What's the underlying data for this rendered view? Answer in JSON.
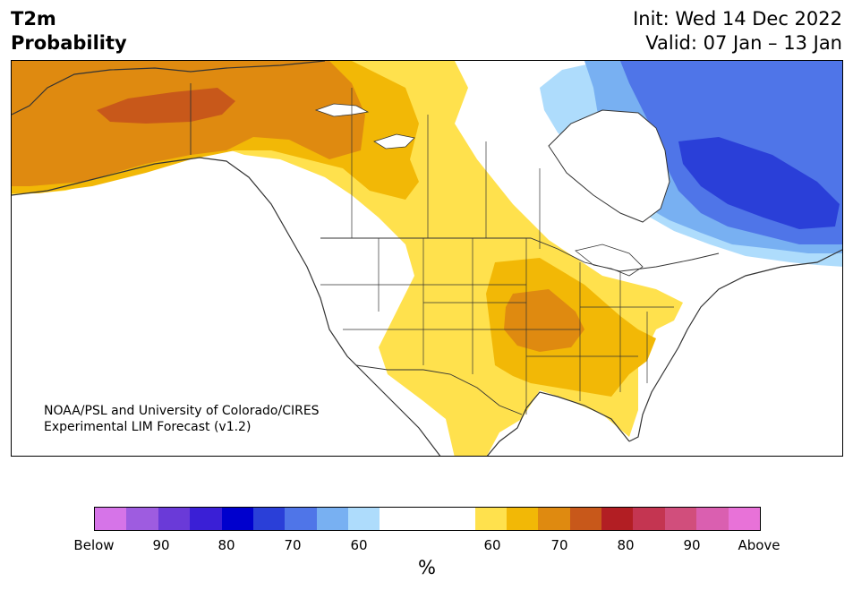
{
  "title": {
    "variable": "T2m",
    "product": "Probability",
    "init": "Init: Wed 14 Dec 2022",
    "valid": "Valid: 07 Jan – 13 Jan"
  },
  "credit": {
    "line1": "NOAA/PSL and University of Colorado/CIRES",
    "line2": "Experimental LIM Forecast (v1.2)"
  },
  "colorbar": {
    "unit": "%",
    "tick_labels": [
      "Below",
      "90",
      "80",
      "70",
      "60",
      "60",
      "70",
      "80",
      "90",
      "Above"
    ],
    "colors": [
      "#d674e8",
      "#9e5ce0",
      "#6a3ad8",
      "#3a1fd6",
      "#0000cd",
      "#2a3fd8",
      "#4f75e8",
      "#78b0f2",
      "#aedcfc",
      "#ffffff",
      "#ffe14d",
      "#f2b806",
      "#df8a10",
      "#c8581a",
      "#b21e23",
      "#c43551",
      "#d14e7c",
      "#da5fb0",
      "#e872d8"
    ]
  },
  "map": {
    "region": "North America",
    "field": "2m temperature tercile probability",
    "colors": {
      "ocean": "#ffffff",
      "border": "#333333",
      "above_60": "#ffe14d",
      "above_70": "#f2b806",
      "above_80": "#df8a10",
      "above_90": "#c8581a",
      "below_60": "#aedcfc",
      "below_70": "#78b0f2",
      "below_80": "#4f75e8",
      "below_90": "#2a3fd8"
    }
  }
}
